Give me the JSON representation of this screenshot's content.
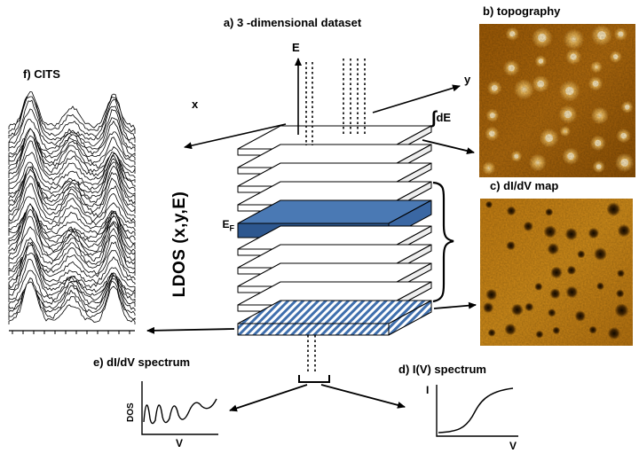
{
  "figure": {
    "title": "a) 3 -dimensional dataset",
    "panel_b_title": "b) topography",
    "panel_c_title": "c) dI/dV map",
    "panel_d_title": "d) I(V) spectrum",
    "panel_e_title": "e) dI/dV spectrum",
    "panel_f_title": "f) CITS",
    "integral": {
      "sign": "∫",
      "text": "dE"
    },
    "ldos_label": "LDOS (x,y,E)",
    "axes": {
      "energy": "E",
      "x": "x",
      "y": "y"
    },
    "fermi_level": {
      "base": "E",
      "sub": "F"
    },
    "spectrum_e_axes": {
      "y": "DOS",
      "x": "V"
    },
    "spectrum_d_axes": {
      "y": "I",
      "x": "V"
    }
  },
  "colors": {
    "fermi_layer_top": "#4a79b4",
    "fermi_layer_front": "#2d578f",
    "fermi_layer_side": "#3a67a3",
    "hatch_stripe": "#3f6fad",
    "layer_outline": "#000000",
    "topography_base": "#a86208",
    "topography_spot": "#ffedc2",
    "didv_base": "#c67f12",
    "didv_spot": "#120900"
  }
}
